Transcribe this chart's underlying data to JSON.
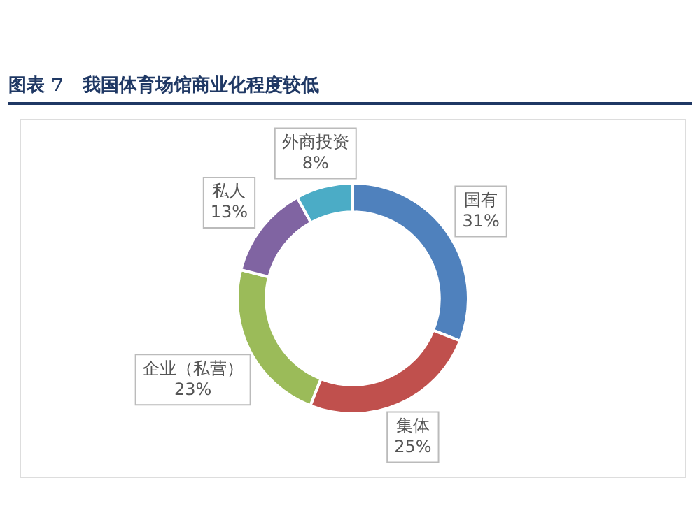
{
  "chart_data": {
    "type": "donut",
    "title": "图表 7   我国体育场馆商业化程度较低",
    "categories": [
      "国有",
      "集体",
      "企业（私营）",
      "私人",
      "外商投资"
    ],
    "values": [
      31,
      25,
      23,
      13,
      8
    ],
    "value_labels": [
      "31%",
      "25%",
      "23%",
      "13%",
      "8%"
    ],
    "colors": [
      "#4f81bd",
      "#c0504d",
      "#9bbb59",
      "#8064a2",
      "#4bacc6"
    ],
    "legend": false
  }
}
